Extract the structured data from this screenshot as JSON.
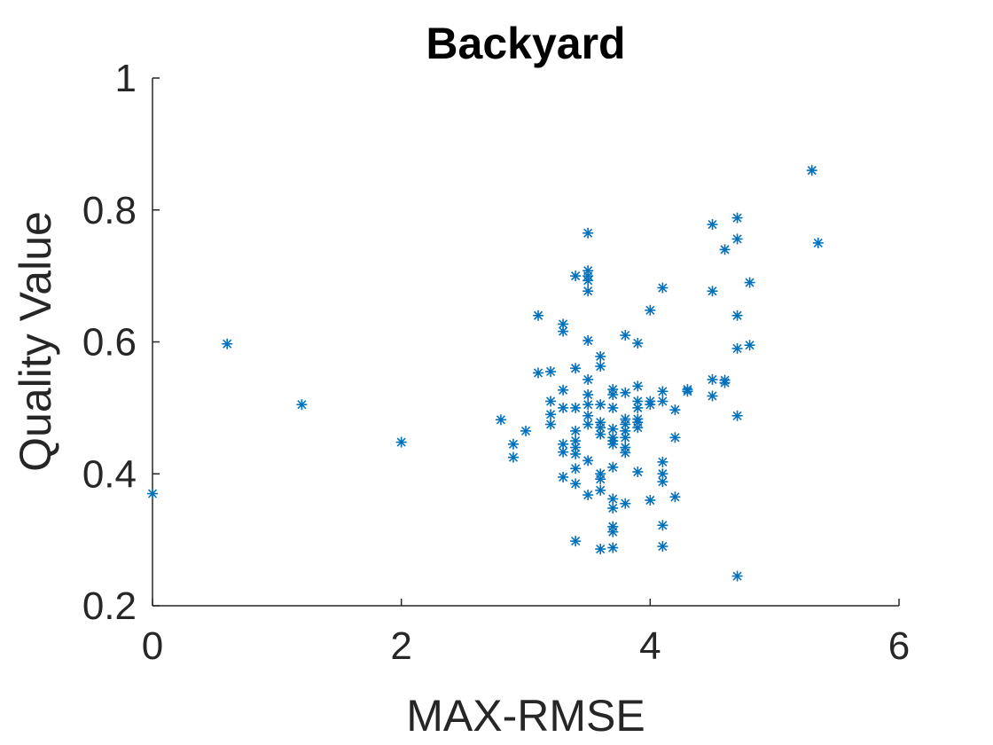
{
  "chart_data": {
    "type": "scatter",
    "title": "Backyard",
    "xlabel": "MAX-RMSE",
    "ylabel": "Quality Value",
    "xlim": [
      0,
      6
    ],
    "ylim": [
      0.2,
      1
    ],
    "xticks": [
      0,
      2,
      4,
      6
    ],
    "xtick_labels": [
      "0",
      "2",
      "4",
      "6"
    ],
    "yticks": [
      0.2,
      0.4,
      0.6,
      0.8,
      1
    ],
    "ytick_labels": [
      "0.2",
      "0.4",
      "0.6",
      "0.8",
      "1"
    ],
    "marker": "asterisk",
    "color": "#0072BD",
    "grid": false,
    "series": [
      {
        "points": [
          [
            0.0,
            0.37
          ],
          [
            0.6,
            0.597
          ],
          [
            1.2,
            0.505
          ],
          [
            2.0,
            0.448
          ],
          [
            2.8,
            0.482
          ],
          [
            2.9,
            0.445
          ],
          [
            2.9,
            0.425
          ],
          [
            3.0,
            0.465
          ],
          [
            3.1,
            0.64
          ],
          [
            3.1,
            0.553
          ],
          [
            3.2,
            0.555
          ],
          [
            3.2,
            0.51
          ],
          [
            3.2,
            0.49
          ],
          [
            3.2,
            0.475
          ],
          [
            3.3,
            0.627
          ],
          [
            3.3,
            0.616
          ],
          [
            3.3,
            0.527
          ],
          [
            3.3,
            0.5
          ],
          [
            3.3,
            0.445
          ],
          [
            3.3,
            0.433
          ],
          [
            3.3,
            0.395
          ],
          [
            3.4,
            0.7
          ],
          [
            3.4,
            0.56
          ],
          [
            3.4,
            0.5
          ],
          [
            3.4,
            0.465
          ],
          [
            3.4,
            0.45
          ],
          [
            3.4,
            0.44
          ],
          [
            3.4,
            0.43
          ],
          [
            3.4,
            0.408
          ],
          [
            3.4,
            0.385
          ],
          [
            3.4,
            0.298
          ],
          [
            3.5,
            0.765
          ],
          [
            3.5,
            0.708
          ],
          [
            3.5,
            0.7
          ],
          [
            3.5,
            0.693
          ],
          [
            3.5,
            0.677
          ],
          [
            3.5,
            0.602
          ],
          [
            3.5,
            0.543
          ],
          [
            3.5,
            0.52
          ],
          [
            3.5,
            0.505
          ],
          [
            3.5,
            0.488
          ],
          [
            3.5,
            0.475
          ],
          [
            3.5,
            0.42
          ],
          [
            3.5,
            0.368
          ],
          [
            3.6,
            0.578
          ],
          [
            3.6,
            0.563
          ],
          [
            3.6,
            0.505
          ],
          [
            3.6,
            0.478
          ],
          [
            3.6,
            0.47
          ],
          [
            3.6,
            0.46
          ],
          [
            3.6,
            0.4
          ],
          [
            3.6,
            0.392
          ],
          [
            3.6,
            0.375
          ],
          [
            3.6,
            0.286
          ],
          [
            3.7,
            0.528
          ],
          [
            3.7,
            0.52
          ],
          [
            3.7,
            0.5
          ],
          [
            3.7,
            0.468
          ],
          [
            3.7,
            0.455
          ],
          [
            3.7,
            0.45
          ],
          [
            3.7,
            0.445
          ],
          [
            3.7,
            0.41
          ],
          [
            3.7,
            0.362
          ],
          [
            3.7,
            0.348
          ],
          [
            3.7,
            0.32
          ],
          [
            3.7,
            0.312
          ],
          [
            3.7,
            0.288
          ],
          [
            3.8,
            0.61
          ],
          [
            3.8,
            0.523
          ],
          [
            3.8,
            0.483
          ],
          [
            3.8,
            0.475
          ],
          [
            3.8,
            0.465
          ],
          [
            3.8,
            0.455
          ],
          [
            3.8,
            0.44
          ],
          [
            3.8,
            0.432
          ],
          [
            3.8,
            0.355
          ],
          [
            3.9,
            0.598
          ],
          [
            3.9,
            0.533
          ],
          [
            3.9,
            0.51
          ],
          [
            3.9,
            0.5
          ],
          [
            3.9,
            0.483
          ],
          [
            3.9,
            0.478
          ],
          [
            3.9,
            0.47
          ],
          [
            3.9,
            0.403
          ],
          [
            4.0,
            0.648
          ],
          [
            4.0,
            0.51
          ],
          [
            4.0,
            0.505
          ],
          [
            4.0,
            0.36
          ],
          [
            4.1,
            0.682
          ],
          [
            4.1,
            0.525
          ],
          [
            4.1,
            0.51
          ],
          [
            4.1,
            0.418
          ],
          [
            4.1,
            0.4
          ],
          [
            4.1,
            0.388
          ],
          [
            4.1,
            0.322
          ],
          [
            4.1,
            0.29
          ],
          [
            4.2,
            0.497
          ],
          [
            4.2,
            0.455
          ],
          [
            4.2,
            0.365
          ],
          [
            4.3,
            0.528
          ],
          [
            4.3,
            0.525
          ],
          [
            4.5,
            0.778
          ],
          [
            4.5,
            0.677
          ],
          [
            4.5,
            0.543
          ],
          [
            4.5,
            0.518
          ],
          [
            4.6,
            0.74
          ],
          [
            4.6,
            0.542
          ],
          [
            4.6,
            0.538
          ],
          [
            4.7,
            0.788
          ],
          [
            4.7,
            0.756
          ],
          [
            4.7,
            0.64
          ],
          [
            4.7,
            0.59
          ],
          [
            4.7,
            0.488
          ],
          [
            4.7,
            0.245
          ],
          [
            4.8,
            0.69
          ],
          [
            4.8,
            0.595
          ],
          [
            5.3,
            0.86
          ],
          [
            5.35,
            0.75
          ]
        ]
      }
    ]
  }
}
